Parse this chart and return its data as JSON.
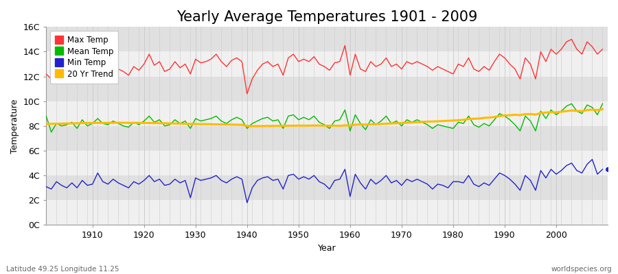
{
  "title": "Yearly Average Temperatures 1901 - 2009",
  "xlabel": "Year",
  "ylabel": "Temperature",
  "subtitle_left": "Latitude 49.25 Longitude 11.25",
  "subtitle_right": "worldspecies.org",
  "years": [
    1901,
    1902,
    1903,
    1904,
    1905,
    1906,
    1907,
    1908,
    1909,
    1910,
    1911,
    1912,
    1913,
    1914,
    1915,
    1916,
    1917,
    1918,
    1919,
    1920,
    1921,
    1922,
    1923,
    1924,
    1925,
    1926,
    1927,
    1928,
    1929,
    1930,
    1931,
    1932,
    1933,
    1934,
    1935,
    1936,
    1937,
    1938,
    1939,
    1940,
    1941,
    1942,
    1943,
    1944,
    1945,
    1946,
    1947,
    1948,
    1949,
    1950,
    1951,
    1952,
    1953,
    1954,
    1955,
    1956,
    1957,
    1958,
    1959,
    1960,
    1961,
    1962,
    1963,
    1964,
    1965,
    1966,
    1967,
    1968,
    1969,
    1970,
    1971,
    1972,
    1973,
    1974,
    1975,
    1976,
    1977,
    1978,
    1979,
    1980,
    1981,
    1982,
    1983,
    1984,
    1985,
    1986,
    1987,
    1988,
    1989,
    1990,
    1991,
    1992,
    1993,
    1994,
    1995,
    1996,
    1997,
    1998,
    1999,
    2000,
    2001,
    2002,
    2003,
    2004,
    2005,
    2006,
    2007,
    2008,
    2009
  ],
  "max_temp": [
    12.2,
    11.8,
    12.6,
    12.4,
    12.0,
    12.8,
    12.2,
    13.0,
    12.4,
    12.3,
    13.5,
    12.7,
    12.5,
    13.1,
    12.6,
    12.4,
    12.1,
    12.8,
    12.5,
    13.0,
    13.8,
    12.9,
    13.2,
    12.4,
    12.6,
    13.2,
    12.7,
    13.0,
    12.2,
    13.4,
    13.1,
    13.2,
    13.4,
    13.8,
    13.2,
    12.8,
    13.3,
    13.5,
    13.2,
    10.6,
    11.8,
    12.5,
    13.0,
    13.2,
    12.8,
    13.0,
    12.1,
    13.5,
    13.8,
    13.2,
    13.4,
    13.2,
    13.6,
    13.0,
    12.8,
    12.5,
    13.1,
    13.2,
    14.5,
    12.1,
    13.8,
    12.6,
    12.4,
    13.2,
    12.8,
    13.0,
    13.5,
    12.8,
    13.0,
    12.6,
    13.2,
    13.0,
    13.2,
    13.0,
    12.8,
    12.5,
    12.8,
    12.6,
    12.4,
    12.2,
    13.0,
    12.8,
    13.5,
    12.6,
    12.4,
    12.8,
    12.5,
    13.2,
    13.8,
    13.5,
    13.0,
    12.6,
    11.8,
    13.5,
    13.0,
    11.8,
    14.0,
    13.2,
    14.2,
    13.8,
    14.2,
    14.8,
    15.0,
    14.2,
    13.8,
    14.8,
    14.4,
    13.8,
    14.2
  ],
  "mean_temp": [
    8.8,
    7.5,
    8.2,
    8.0,
    8.1,
    8.3,
    7.8,
    8.5,
    8.0,
    8.2,
    8.6,
    8.2,
    8.1,
    8.4,
    8.2,
    8.0,
    7.9,
    8.3,
    8.1,
    8.4,
    8.8,
    8.3,
    8.5,
    8.0,
    8.1,
    8.5,
    8.2,
    8.4,
    7.8,
    8.6,
    8.4,
    8.5,
    8.6,
    8.8,
    8.4,
    8.2,
    8.5,
    8.7,
    8.5,
    7.8,
    8.2,
    8.4,
    8.6,
    8.7,
    8.4,
    8.5,
    7.8,
    8.8,
    8.9,
    8.5,
    8.7,
    8.5,
    8.8,
    8.3,
    8.1,
    7.8,
    8.4,
    8.5,
    9.3,
    7.6,
    8.9,
    8.2,
    7.7,
    8.5,
    8.1,
    8.4,
    8.8,
    8.2,
    8.4,
    8.0,
    8.5,
    8.3,
    8.5,
    8.3,
    8.1,
    7.8,
    8.1,
    8.0,
    7.9,
    7.8,
    8.3,
    8.2,
    8.8,
    8.1,
    7.9,
    8.2,
    8.0,
    8.5,
    9.0,
    8.8,
    8.5,
    8.1,
    7.6,
    8.8,
    8.4,
    7.6,
    9.2,
    8.6,
    9.3,
    8.9,
    9.2,
    9.6,
    9.8,
    9.2,
    9.0,
    9.7,
    9.5,
    8.9,
    9.8
  ],
  "min_temp": [
    3.1,
    2.9,
    3.5,
    3.2,
    3.0,
    3.4,
    3.0,
    3.6,
    3.2,
    3.3,
    4.2,
    3.5,
    3.3,
    3.7,
    3.4,
    3.2,
    3.0,
    3.5,
    3.3,
    3.6,
    4.0,
    3.5,
    3.7,
    3.2,
    3.3,
    3.7,
    3.4,
    3.6,
    2.2,
    3.8,
    3.6,
    3.7,
    3.8,
    4.0,
    3.6,
    3.4,
    3.7,
    3.9,
    3.7,
    1.8,
    3.0,
    3.6,
    3.8,
    3.9,
    3.6,
    3.7,
    2.9,
    4.0,
    4.1,
    3.7,
    3.9,
    3.7,
    4.0,
    3.5,
    3.3,
    2.9,
    3.6,
    3.7,
    4.5,
    2.3,
    4.1,
    3.4,
    2.9,
    3.7,
    3.3,
    3.6,
    4.0,
    3.4,
    3.6,
    3.2,
    3.7,
    3.5,
    3.7,
    3.5,
    3.3,
    2.9,
    3.3,
    3.2,
    3.0,
    3.5,
    3.5,
    3.4,
    4.0,
    3.3,
    3.1,
    3.4,
    3.2,
    3.7,
    4.2,
    4.0,
    3.7,
    3.3,
    2.8,
    4.0,
    3.6,
    2.8,
    4.4,
    3.8,
    4.5,
    4.1,
    4.4,
    4.8,
    5.0,
    4.4,
    4.2,
    4.9,
    5.3,
    4.1,
    4.5
  ],
  "trend_vals": [
    8.15,
    8.17,
    8.18,
    8.19,
    8.2,
    8.21,
    8.22,
    8.23,
    8.24,
    8.24,
    8.25,
    8.25,
    8.25,
    8.26,
    8.26,
    8.26,
    8.25,
    8.25,
    8.25,
    8.24,
    8.24,
    8.23,
    8.23,
    8.22,
    8.21,
    8.2,
    8.19,
    8.18,
    8.17,
    8.16,
    8.15,
    8.15,
    8.14,
    8.13,
    8.13,
    8.12,
    8.11,
    8.1,
    8.1,
    8.0,
    7.99,
    7.99,
    7.99,
    8.0,
    8.0,
    8.01,
    8.01,
    8.02,
    8.02,
    8.03,
    8.03,
    8.03,
    8.04,
    8.04,
    8.03,
    8.02,
    8.02,
    8.01,
    8.05,
    8.04,
    8.1,
    8.12,
    8.11,
    8.13,
    8.14,
    8.16,
    8.18,
    8.2,
    8.22,
    8.24,
    8.26,
    8.28,
    8.3,
    8.33,
    8.35,
    8.36,
    8.38,
    8.4,
    8.42,
    8.44,
    8.46,
    8.5,
    8.56,
    8.58,
    8.6,
    8.65,
    8.68,
    8.72,
    8.8,
    8.85,
    8.87,
    8.9,
    8.88,
    8.95,
    8.96,
    8.92,
    9.05,
    9.08,
    9.12,
    9.1,
    9.15,
    9.2,
    9.25,
    9.22,
    9.2,
    9.28,
    9.32,
    9.28,
    9.35
  ],
  "max_color": "#ff3333",
  "mean_color": "#00bb00",
  "min_color": "#2222cc",
  "trend_color": "#ffbb00",
  "bg_color": "#ffffff",
  "plot_bg_light": "#f0f0f0",
  "plot_bg_dark": "#e0e0e0",
  "grid_color": "#cccccc",
  "title_fontsize": 15,
  "label_fontsize": 9,
  "tick_fontsize": 9,
  "ylim": [
    0,
    16
  ],
  "yticks": [
    0,
    2,
    4,
    6,
    8,
    10,
    12,
    14,
    16
  ],
  "ytick_labels": [
    "0C",
    "2C",
    "4C",
    "6C",
    "8C",
    "10C",
    "12C",
    "14C",
    "16C"
  ],
  "xticks": [
    1910,
    1920,
    1930,
    1940,
    1950,
    1960,
    1970,
    1980,
    1990,
    2000
  ],
  "xlim": [
    1901,
    2010
  ]
}
